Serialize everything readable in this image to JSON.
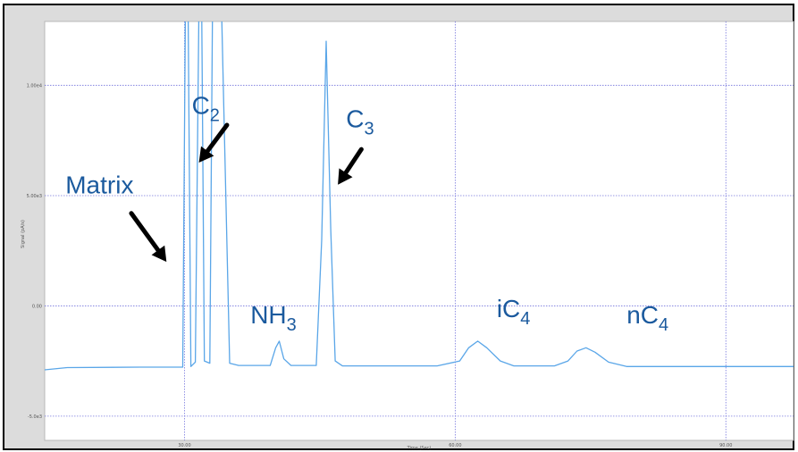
{
  "chart_data": {
    "type": "line",
    "xlabel": "Time (Sec)",
    "ylabel": "Signal (pA/s)",
    "xlim": [
      14.5,
      97.5
    ],
    "ylim": [
      -6.1,
      12.9
    ],
    "x_ticks": [
      {
        "value": 30,
        "label": "30.00"
      },
      {
        "value": 60,
        "label": "60.00"
      },
      {
        "value": 90,
        "label": "90.00"
      }
    ],
    "y_ticks": [
      {
        "value": -5,
        "label": "-5.0e3"
      },
      {
        "value": 0,
        "label": "0.00"
      },
      {
        "value": 5,
        "label": "5.00e3"
      },
      {
        "value": 10,
        "label": "1.00e4"
      }
    ],
    "baseline": -2.75,
    "grid": true,
    "line_color": "#5aa6e8",
    "series": [
      {
        "values": [
          {
            "x": 14.5,
            "y": -2.9
          },
          {
            "x": 17,
            "y": -2.8
          },
          {
            "x": 25,
            "y": -2.78
          },
          {
            "x": 28.8,
            "y": -2.78
          },
          {
            "x": 29.8,
            "y": -2.78
          },
          {
            "x": 30.1,
            "y": 13.5
          },
          {
            "x": 30.4,
            "y": 13.5
          },
          {
            "x": 30.7,
            "y": -2.75
          },
          {
            "x": 31.2,
            "y": -2.55
          },
          {
            "x": 31.6,
            "y": 13.5
          },
          {
            "x": 31.9,
            "y": 13.5
          },
          {
            "x": 32.2,
            "y": -2.5
          },
          {
            "x": 32.8,
            "y": -2.6
          },
          {
            "x": 33.1,
            "y": 13.5
          },
          {
            "x": 34.1,
            "y": 13.5
          },
          {
            "x": 35,
            "y": -2.6
          },
          {
            "x": 36,
            "y": -2.7
          },
          {
            "x": 39.5,
            "y": -2.7
          },
          {
            "x": 40.1,
            "y": -1.9
          },
          {
            "x": 40.5,
            "y": -1.6
          },
          {
            "x": 41.0,
            "y": -2.4
          },
          {
            "x": 41.8,
            "y": -2.7
          },
          {
            "x": 44.6,
            "y": -2.7
          },
          {
            "x": 45.2,
            "y": 3.0
          },
          {
            "x": 45.7,
            "y": 12.0
          },
          {
            "x": 46.2,
            "y": 3.5
          },
          {
            "x": 46.7,
            "y": -2.5
          },
          {
            "x": 47.5,
            "y": -2.72
          },
          {
            "x": 58,
            "y": -2.72
          },
          {
            "x": 60.5,
            "y": -2.5
          },
          {
            "x": 61.5,
            "y": -1.9
          },
          {
            "x": 62.5,
            "y": -1.6
          },
          {
            "x": 63.5,
            "y": -1.9
          },
          {
            "x": 65,
            "y": -2.5
          },
          {
            "x": 66.5,
            "y": -2.72
          },
          {
            "x": 71,
            "y": -2.72
          },
          {
            "x": 72.5,
            "y": -2.5
          },
          {
            "x": 73.5,
            "y": -2.05
          },
          {
            "x": 74.5,
            "y": -1.9
          },
          {
            "x": 75.5,
            "y": -2.1
          },
          {
            "x": 77,
            "y": -2.55
          },
          {
            "x": 79,
            "y": -2.75
          },
          {
            "x": 97.5,
            "y": -2.75
          }
        ]
      }
    ],
    "annotations": [
      {
        "id": "matrix",
        "label": "Matrix",
        "sub": "",
        "x": 16.8,
        "y": 5.1,
        "arrow_from": [
          24.1,
          4.2
        ],
        "arrow_to": [
          28.0,
          2.0
        ]
      },
      {
        "id": "c2",
        "label": "C",
        "sub": "2",
        "x": 30.8,
        "y": 8.7,
        "arrow_from": [
          34.7,
          8.2
        ],
        "arrow_to": [
          31.6,
          6.5
        ]
      },
      {
        "id": "nh3",
        "label": "NH",
        "sub": "3",
        "x": 37.3,
        "y": -0.8,
        "arrow_from": null,
        "arrow_to": null
      },
      {
        "id": "c3",
        "label": "C",
        "sub": "3",
        "x": 47.9,
        "y": 8.1,
        "arrow_from": [
          49.6,
          7.1
        ],
        "arrow_to": [
          47.0,
          5.5
        ]
      },
      {
        "id": "ic4",
        "label": "iC",
        "sub": "4",
        "x": 64.6,
        "y": -0.5,
        "arrow_from": null,
        "arrow_to": null
      },
      {
        "id": "nc4",
        "label": "nC",
        "sub": "4",
        "x": 79.0,
        "y": -0.8,
        "arrow_from": null,
        "arrow_to": null
      }
    ]
  }
}
